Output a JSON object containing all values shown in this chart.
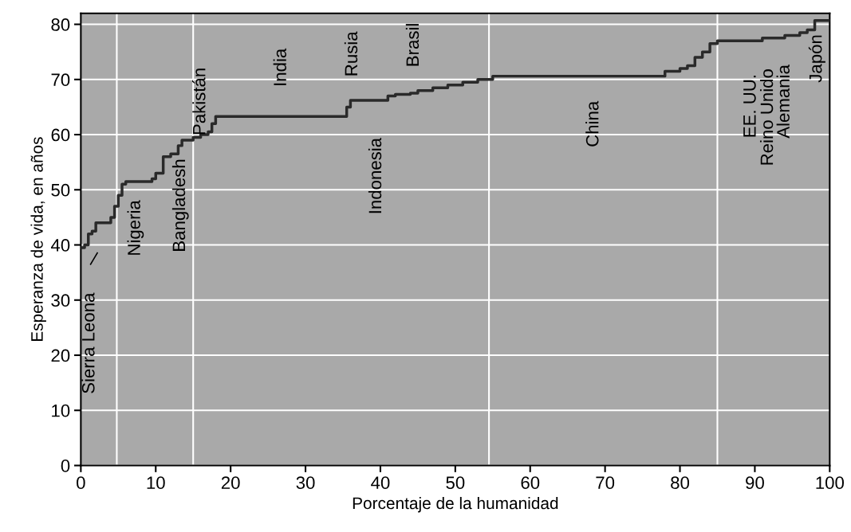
{
  "chart_data": {
    "type": "step",
    "xlabel": "Porcentaje de la humanidad",
    "ylabel": "Esperanza de vida, en años",
    "x": [
      0,
      0.5,
      1,
      1.5,
      2,
      3,
      4,
      4.5,
      5,
      5.5,
      6,
      8,
      9.5,
      10,
      11,
      12,
      13,
      13.5,
      15,
      16,
      17,
      17.5,
      18,
      35,
      35.5,
      36,
      40,
      41,
      42,
      44,
      45,
      47,
      49,
      51,
      53,
      55,
      77,
      78,
      80,
      81,
      82,
      83,
      84,
      85,
      90,
      91,
      94,
      96,
      97,
      98,
      100
    ],
    "series": [
      {
        "color": "#2a2a2a",
        "values": [
          39.5,
          40,
          42,
          42.5,
          44,
          44,
          45,
          47,
          49,
          51,
          51.5,
          51.5,
          52,
          53,
          56,
          56.5,
          58,
          59,
          59.5,
          60,
          60.5,
          62,
          63.3,
          63.3,
          65,
          66.2,
          66.2,
          67,
          67.3,
          67.5,
          68,
          68.5,
          69,
          69.5,
          70,
          70.6,
          70.6,
          71.5,
          72,
          72.5,
          74,
          75,
          76.5,
          77,
          77,
          77.5,
          78,
          78.5,
          79,
          80.7,
          80.7
        ]
      }
    ],
    "xlim": [
      0,
      100
    ],
    "ylim": [
      0,
      82
    ],
    "xticks": [
      0,
      10,
      20,
      30,
      40,
      50,
      60,
      70,
      80,
      90,
      100
    ],
    "yticks": [
      0,
      10,
      20,
      30,
      40,
      50,
      60,
      70,
      80
    ],
    "grid": "y",
    "line_style": "solid",
    "marker": "none",
    "ref_lines": [
      {
        "axis": "x",
        "value": 4.8,
        "color": "#ffffff"
      },
      {
        "axis": "x",
        "value": 15,
        "color": "#ffffff"
      },
      {
        "axis": "x",
        "value": 54.5,
        "color": "#ffffff"
      },
      {
        "axis": "x",
        "value": 85,
        "color": "#ffffff"
      }
    ],
    "annotations": [
      "Sierra Leona",
      "Nigeria",
      "Bangladesh",
      "Pakistán",
      "India",
      "Rusia",
      "Indonesia",
      "Brasil",
      "China",
      "EE. UU.",
      "Reino Unido",
      "Alemania",
      "Japón"
    ]
  }
}
